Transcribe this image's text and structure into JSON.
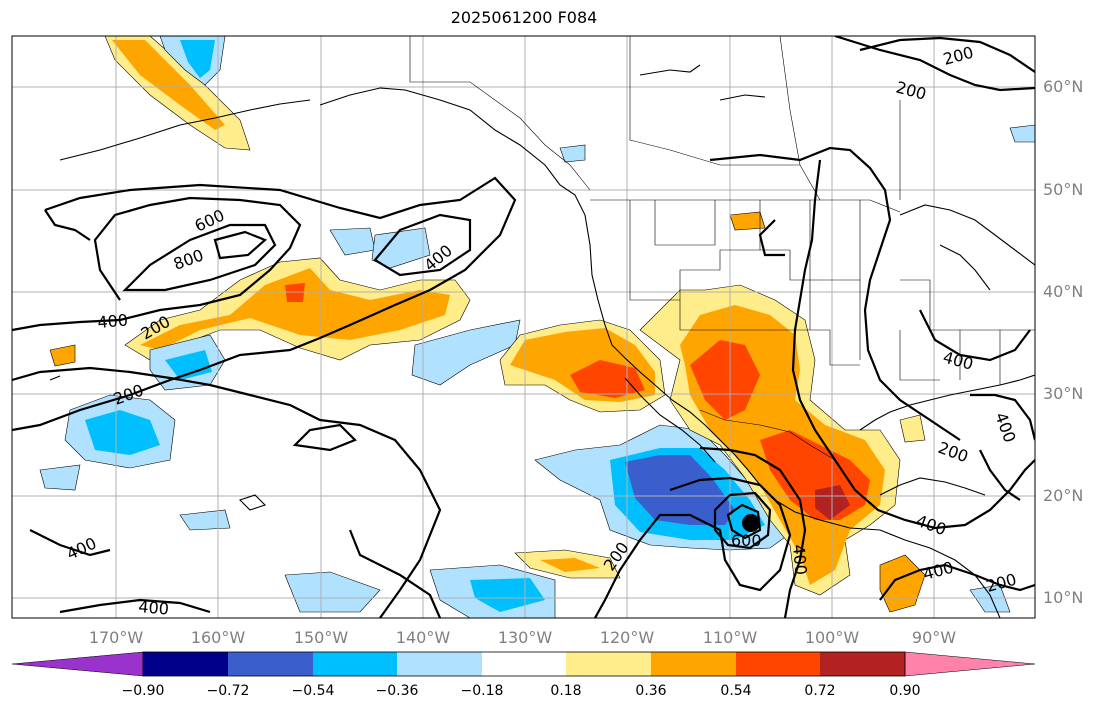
{
  "title": "2025061200 F084",
  "lat_labels": [
    "60°N",
    "50°N",
    "40°N",
    "30°N",
    "20°N",
    "10°N"
  ],
  "lon_labels": [
    "170°W",
    "160°W",
    "150°W",
    "140°W",
    "130°W",
    "120°W",
    "110°W",
    "100°W",
    "90°W"
  ],
  "contour_labels": [
    "200",
    "200",
    "200",
    "200",
    "200",
    "200",
    "200",
    "400",
    "400",
    "400",
    "400",
    "400",
    "400",
    "400",
    "400",
    "600",
    "600",
    "800"
  ],
  "colorbar": {
    "tick_labels": [
      "−0.90",
      "−0.72",
      "−0.54",
      "−0.36",
      "−0.18",
      "0.18",
      "0.36",
      "0.54",
      "0.72",
      "0.90"
    ],
    "colors": [
      "#9a32cd",
      "#00008b",
      "#3a5fcd",
      "#00bfff",
      "#b0e2ff",
      "#ffffff",
      "#ffec8b",
      "#ffa500",
      "#ff4500",
      "#b22222",
      "#ff82ab"
    ]
  },
  "colors": {
    "gridline": "#b0b0b0",
    "coastline": "#000000",
    "contour": "#000000",
    "axis_label": "#808080"
  },
  "marker": "storm-center-dot"
}
